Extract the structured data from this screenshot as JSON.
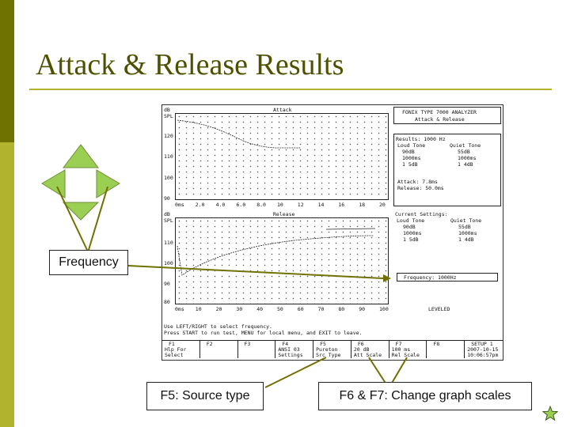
{
  "slide": {
    "title": "Attack & Release Results",
    "labels": {
      "frequency": "Frequency",
      "f5": "F5: Source type",
      "f6f7": "F6 & F7: Change graph scales"
    },
    "colors": {
      "sidebar_dark": "#6f7100",
      "sidebar_light": "#b1b32f",
      "arrow_green": "#9bcf53",
      "callout_line": "#6f7100"
    }
  },
  "analyzer": {
    "header_title": "FONIX TYPE 7000 ANALYZER",
    "header_subtitle": "Attack & Release",
    "attack_graph": {
      "title": "Attack",
      "unit_top": "dB",
      "unit_bottom": "SPL",
      "y_ticks": [
        "120",
        "110",
        "100",
        "90"
      ],
      "x_ticks": [
        "0ms",
        "2.0",
        "4.0",
        "6.0",
        "8.0",
        "10",
        "12",
        "14",
        "16",
        "18",
        "20"
      ]
    },
    "release_graph": {
      "title": "Release",
      "unit_top": "dB",
      "unit_bottom": "SPL",
      "y_ticks": [
        "110",
        "100",
        "90",
        "80"
      ],
      "x_ticks": [
        "0ms",
        "10",
        "20",
        "30",
        "40",
        "50",
        "60",
        "70",
        "80",
        "90",
        "100"
      ]
    },
    "results": {
      "heading": "Results: 1000 Hz",
      "col1": [
        "Loud Tone",
        "90dB",
        "1000ms",
        "1  5dB"
      ],
      "col2": [
        "Quiet Tone",
        "55dB",
        "1000ms",
        "1  4dB"
      ],
      "attack": "Attack:   7.8ms",
      "release": "Release: 50.0ms"
    },
    "current_settings": {
      "heading": "Current Settings:",
      "col1": [
        "Loud Tone",
        "90dB",
        "1000ms",
        "1  5dB"
      ],
      "col2": [
        "Quiet Tone",
        "55dB",
        "1000ms",
        "1  4dB"
      ],
      "frequency": "Frequency: 1000Hz",
      "status": "LEVELED"
    },
    "instructions": [
      "Use LEFT/RIGHT to select frequency.",
      "Press START to run test, MENU for local menu, and EXIT to leave."
    ],
    "function_keys": [
      {
        "key": "F1",
        "line1": "Hlp For",
        "line2": "Select"
      },
      {
        "key": "F2",
        "line1": "",
        "line2": ""
      },
      {
        "key": "F3",
        "line1": "",
        "line2": ""
      },
      {
        "key": "F4",
        "line1": "ANSI 03",
        "line2": "Settings"
      },
      {
        "key": "F5",
        "line1": "Pureton",
        "line2": "Src Type"
      },
      {
        "key": "F6",
        "line1": "20 dB",
        "line2": "Att Scale"
      },
      {
        "key": "F7",
        "line1": "100 ms",
        "line2": "Rel Scale"
      },
      {
        "key": "F8",
        "line1": "",
        "line2": ""
      },
      {
        "key": "SETUP 1",
        "line1": "2007-10-15",
        "line2": "10:06:57pm"
      }
    ]
  }
}
